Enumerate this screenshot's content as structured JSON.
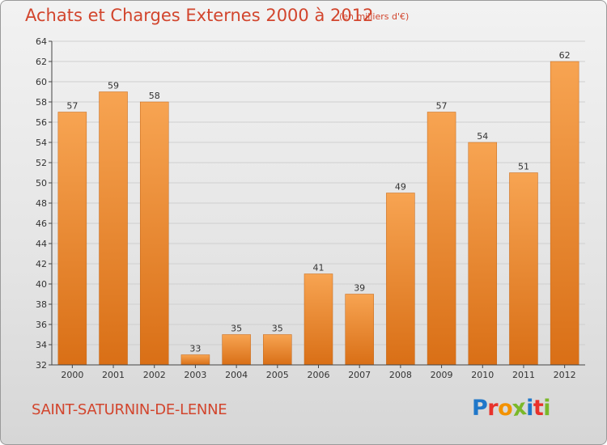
{
  "header": {
    "title": "Achats et Charges Externes 2000 à 2012",
    "subtitle": "(en milliers d'€)"
  },
  "footer": {
    "commune": "SAINT-SATURNIN-DE-LENNE",
    "logo_letters": [
      "P",
      "r",
      "o",
      "x",
      "i",
      "t",
      "i"
    ],
    "logo_colors": [
      "#1f77c9",
      "#e8322b",
      "#f39200",
      "#7ab829",
      "#1f77c9",
      "#e8322b",
      "#7ab829"
    ]
  },
  "colors": {
    "bar_light": "#f7a452",
    "bar_dark": "#d96f16",
    "grid": "#cfcfcf",
    "axis": "#444444",
    "title": "#d2452d"
  },
  "chart_data": {
    "type": "bar",
    "categories": [
      "2000",
      "2001",
      "2002",
      "2003",
      "2004",
      "2005",
      "2006",
      "2007",
      "2008",
      "2009",
      "2010",
      "2011",
      "2012"
    ],
    "values": [
      57,
      59,
      58,
      33,
      35,
      35,
      41,
      39,
      49,
      57,
      54,
      51,
      62
    ],
    "ylim": [
      32,
      64
    ],
    "yticks": [
      32,
      34,
      36,
      38,
      40,
      42,
      44,
      46,
      48,
      50,
      52,
      54,
      56,
      58,
      60,
      62,
      64
    ],
    "grid": true,
    "data_labels": true
  }
}
